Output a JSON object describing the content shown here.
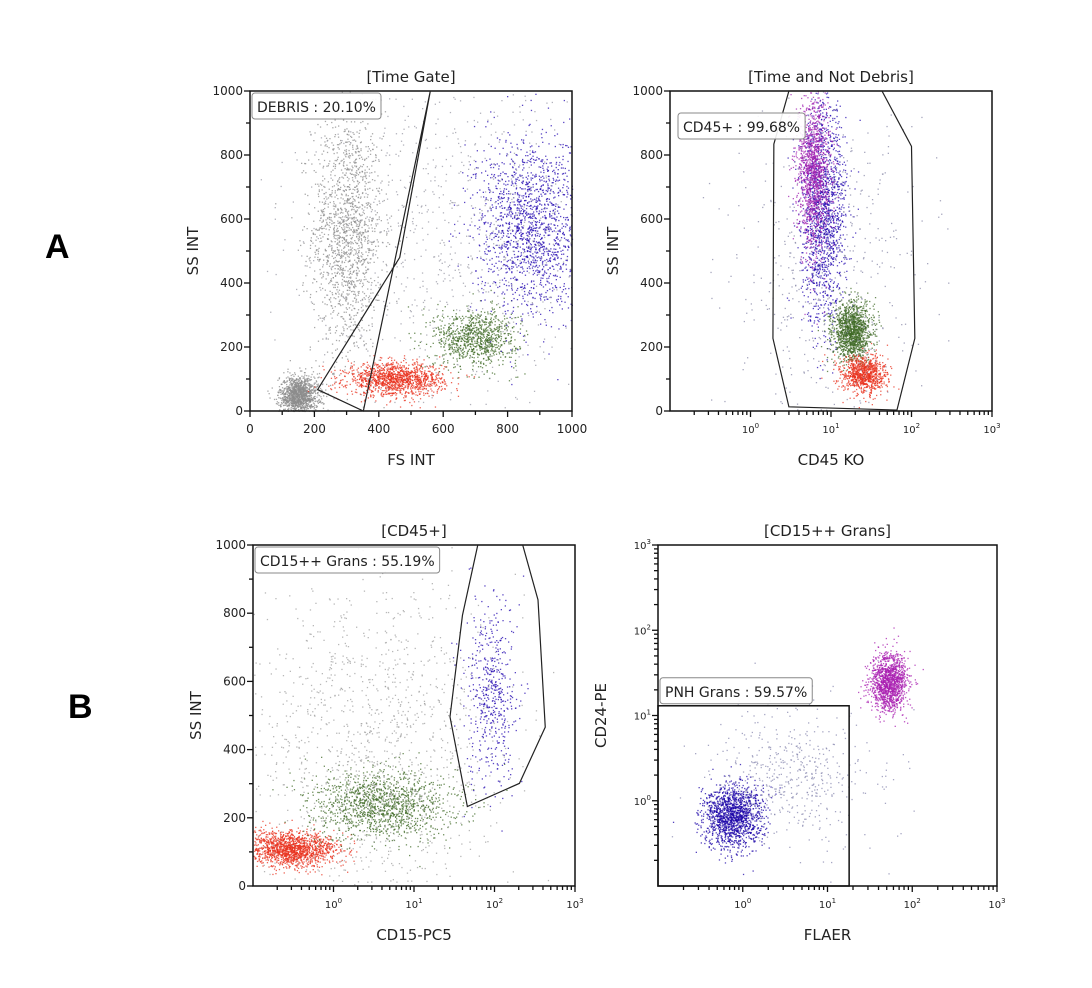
{
  "panel_letters": [
    "A",
    "B"
  ],
  "chart_data": [
    {
      "type": "scatter",
      "title": "[Time Gate]",
      "xlabel": "FS INT",
      "ylabel": "SS INT",
      "xscale": "linear",
      "xlim": [
        0,
        1000
      ],
      "xticks": [
        "0",
        "200",
        "400",
        "600",
        "800",
        "1000"
      ],
      "yscale": "linear",
      "ylim": [
        0,
        1000
      ],
      "yticks": [
        "0",
        "200",
        "400",
        "600",
        "800",
        "1000"
      ],
      "gate": {
        "label": "DEBRIS : 20.10%",
        "polygon": [
          [
            560,
            1000
          ],
          [
            465,
            480
          ],
          [
            210,
            67
          ],
          [
            352,
            0
          ]
        ]
      },
      "populations": [
        {
          "color": "#8c8c8c",
          "center": [
            300,
            560
          ],
          "sd": [
            55,
            190
          ]
        },
        {
          "color": "#8c8c8c",
          "center": [
            150,
            50
          ],
          "sd": [
            30,
            30
          ]
        },
        {
          "color": "#e8321e",
          "center": [
            450,
            100
          ],
          "sd": [
            75,
            25
          ]
        },
        {
          "color": "#3f6a25",
          "center": [
            700,
            230
          ],
          "sd": [
            65,
            45
          ]
        },
        {
          "color": "#2208b0",
          "center": [
            870,
            580
          ],
          "sd": [
            85,
            140
          ]
        },
        {
          "color": "#9a9aa6",
          "center": [
            650,
            550
          ],
          "sd": [
            250,
            300
          ]
        }
      ]
    },
    {
      "type": "scatter",
      "title": "[Time and Not Debris]",
      "xlabel": "CD45 KO",
      "ylabel": "SS INT",
      "xscale": "log",
      "xlim": [
        0.1,
        1000
      ],
      "xticks": [
        "10^0",
        "10^1",
        "10^2",
        "10^3"
      ],
      "yscale": "linear",
      "ylim": [
        0,
        1000
      ],
      "yticks": [
        "0",
        "200",
        "400",
        "600",
        "800",
        "1000"
      ],
      "gate": {
        "label": "CD45+ : 99.68%",
        "polygon": [
          [
            3,
            1000
          ],
          [
            43,
            1000
          ],
          [
            100,
            827
          ],
          [
            110,
            227
          ],
          [
            66,
            3
          ],
          [
            3,
            13
          ],
          [
            1.9,
            227
          ],
          [
            1.95,
            834
          ]
        ]
      },
      "populations": [
        {
          "color": "#2208b0",
          "center": [
            8,
            620
          ],
          "sd_log_x": 0.14,
          "sd_y": 170
        },
        {
          "color": "#a020b0",
          "center": [
            6,
            750
          ],
          "sd_log_x": 0.1,
          "sd_y": 120
        },
        {
          "color": "#3f6a25",
          "center": [
            18,
            250
          ],
          "sd_log_x": 0.12,
          "sd_y": 45
        },
        {
          "color": "#e8321e",
          "center": [
            25,
            115
          ],
          "sd_log_x": 0.14,
          "sd_y": 30
        },
        {
          "color": "#8a8aa8",
          "center": [
            10,
            400
          ],
          "sd_log_x": 0.6,
          "sd_y": 300
        }
      ]
    },
    {
      "type": "scatter",
      "title": "[CD45+]",
      "xlabel": "CD15-PC5",
      "ylabel": "SS INT",
      "xscale": "log",
      "xlim": [
        0.1,
        1000
      ],
      "xticks": [
        "10^0",
        "10^1",
        "10^2",
        "10^3"
      ],
      "yscale": "linear",
      "ylim": [
        0,
        1000
      ],
      "yticks": [
        "0",
        "200",
        "400",
        "600",
        "800",
        "1000"
      ],
      "gate": {
        "label": "CD15++ Grans : 55.19%",
        "polygon": [
          [
            62,
            1000
          ],
          [
            224,
            1000
          ],
          [
            347,
            839
          ],
          [
            427,
            466
          ],
          [
            204,
            301
          ],
          [
            46,
            233
          ],
          [
            28,
            496
          ],
          [
            40,
            794
          ]
        ]
      },
      "populations": [
        {
          "color": "#e8321e",
          "center": [
            0.3,
            110
          ],
          "sd_log_x": 0.28,
          "sd_y": 25
        },
        {
          "color": "#3f6a25",
          "center": [
            4,
            240
          ],
          "sd_log_x": 0.45,
          "sd_y": 50
        },
        {
          "color": "#a0a0a0",
          "center": [
            3,
            420
          ],
          "sd_log_x": 0.8,
          "sd_y": 260
        },
        {
          "color": "#2208b0",
          "center": [
            90,
            560
          ],
          "sd_log_x": 0.16,
          "sd_y": 140
        }
      ]
    },
    {
      "type": "scatter",
      "title": "[CD15++ Grans]",
      "xlabel": "FLAER",
      "ylabel": "CD24-PE",
      "xscale": "log",
      "xlim": [
        0.1,
        1000
      ],
      "xticks": [
        "10^0",
        "10^1",
        "10^2",
        "10^3"
      ],
      "yscale": "log",
      "ylim": [
        0.1,
        1000
      ],
      "yticks": [
        "10^0",
        "10^1",
        "10^2",
        "10^3"
      ],
      "gate": {
        "label": "PNH Grans : 59.57%",
        "rect": [
          [
            0.1,
            0.1
          ],
          [
            18,
            13
          ]
        ]
      },
      "populations": [
        {
          "color": "#1c06a8",
          "center": [
            0.75,
            0.65
          ],
          "sd_log_x": 0.17,
          "sd_log_y": 0.19
        },
        {
          "color": "#a81eb0",
          "center": [
            52,
            25
          ],
          "sd_log_x": 0.11,
          "sd_log_y": 0.17
        },
        {
          "color": "#8a8ab0",
          "center": [
            4,
            2
          ],
          "sd_log_x": 0.5,
          "sd_log_y": 0.4
        }
      ]
    }
  ]
}
